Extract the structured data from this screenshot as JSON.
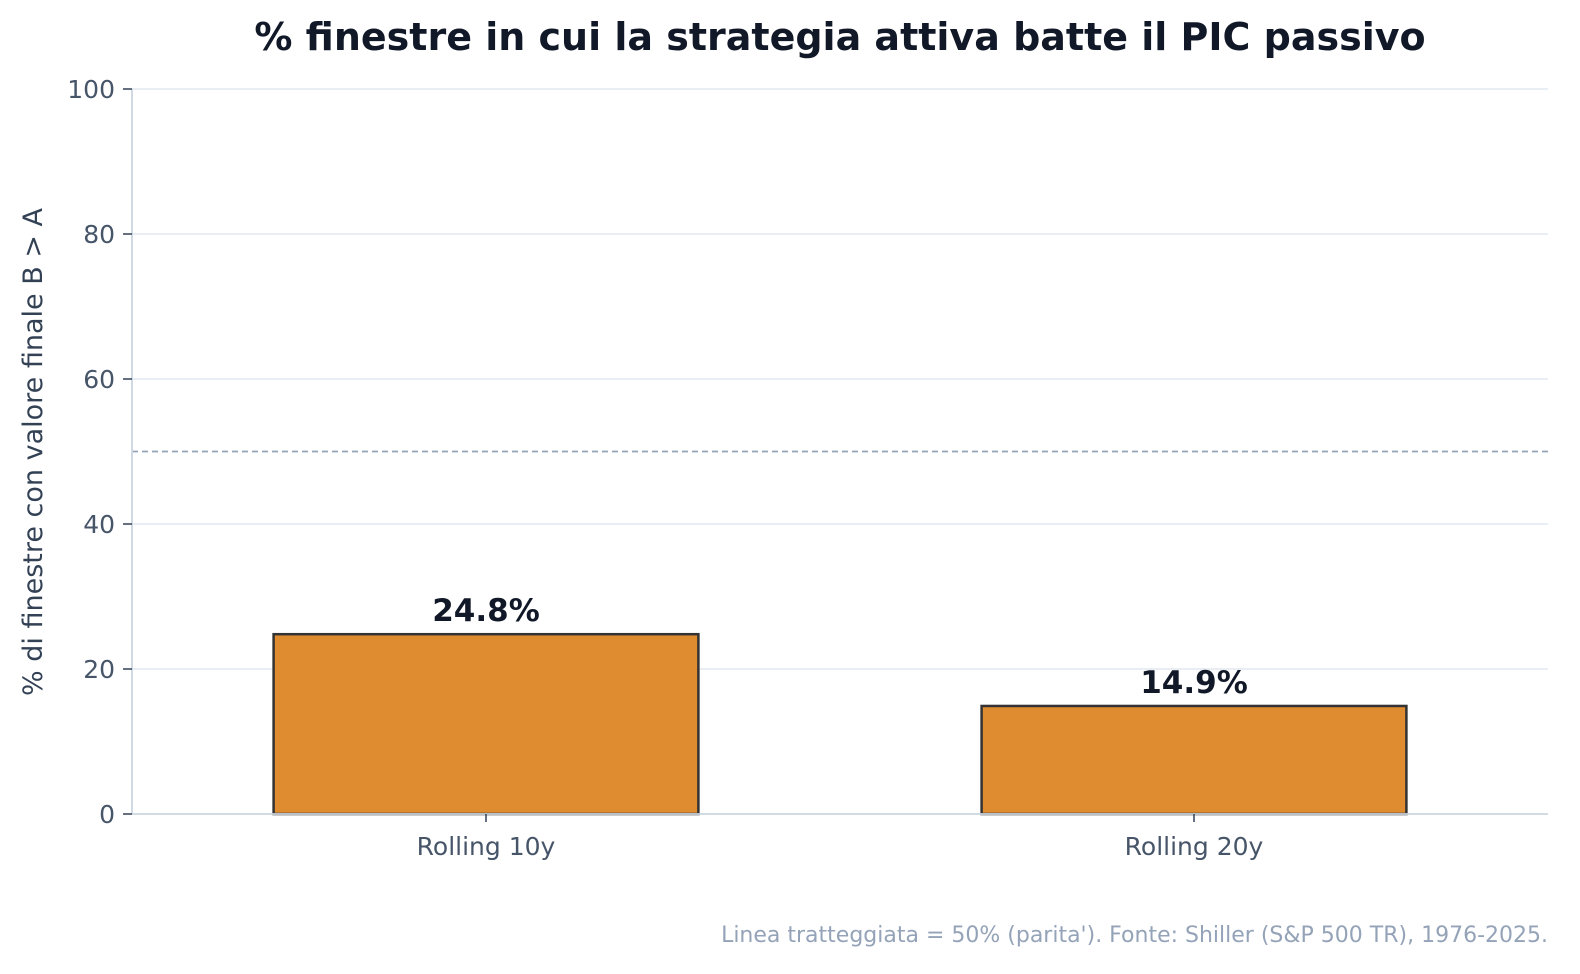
{
  "chart_data": {
    "type": "bar",
    "title": "% finestre in cui la strategia attiva batte il PIC passivo",
    "ylabel": "% di finestre con valore finale B > A",
    "xlabel": "",
    "categories": [
      "Rolling 10y",
      "Rolling 20y"
    ],
    "values": [
      24.8,
      14.9
    ],
    "data_labels": [
      "24.8%",
      "14.9%"
    ],
    "ylim": [
      0,
      100
    ],
    "yticks": [
      0,
      20,
      40,
      60,
      80,
      100
    ],
    "reference_line": {
      "value": 50,
      "style": "dashed"
    },
    "grid": "horizontal",
    "legend": "none",
    "footnote": "Linea tratteggiata = 50% (parita'). Fonte: Shiller (S&P 500 TR), 1976-2025.",
    "colors": {
      "bar": "#DF8B2F",
      "bar_edge": "#333333",
      "grid": "#E2E8F0",
      "axis": "#CBD5E1",
      "reference_line": "#94A3B8"
    }
  }
}
